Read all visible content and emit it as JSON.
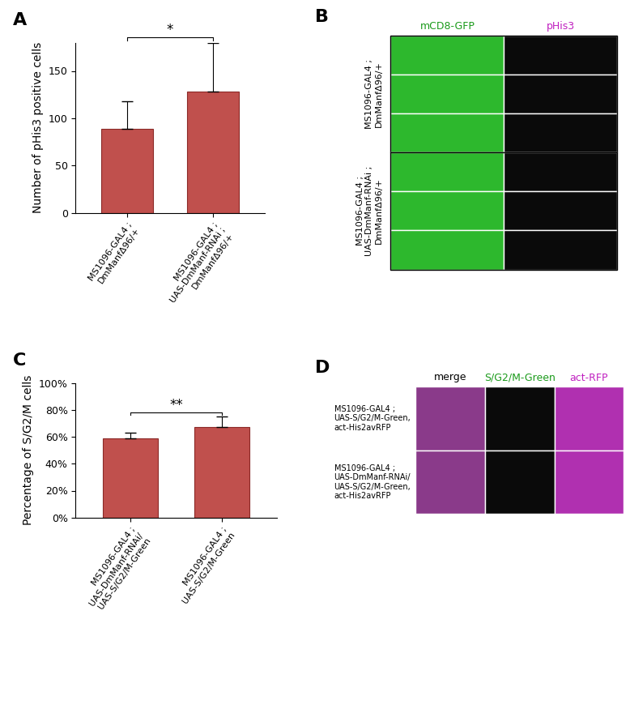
{
  "chart_data": [
    {
      "type": "bar",
      "panel": "A",
      "y_label": "Number of pHis3 positive cells",
      "categories": [
        "MS1096-GAL4 ;\nDmManfΔ96/+",
        "MS1096-GAL4 ;\nUAS-DmManf-RNAi ;\nDmManfΔ96/+"
      ],
      "values": [
        89,
        128
      ],
      "errors": [
        29,
        52
      ],
      "color": "#c0504d",
      "ylim": [
        0,
        180
      ],
      "yticks": [
        0,
        50,
        100,
        150
      ],
      "annotations": [
        "*"
      ]
    },
    {
      "type": "bar",
      "panel": "C",
      "y_label": "Percentage of S/G2/M cells",
      "categories": [
        "MS1096-GAL4 ;\nUAS-DmManf-RNAi/\nUAS-S/G2/M-Green",
        "MS1096-GAL4 ;\nUAS-S/G2/M-Green"
      ],
      "values": [
        58.5,
        67.5
      ],
      "errors": [
        4.5,
        7.5
      ],
      "color": "#c0504d",
      "ylim": [
        0,
        100
      ],
      "yticks": [
        {
          "value": 0,
          "label": "0%"
        },
        {
          "value": 20,
          "label": "20%"
        },
        {
          "value": 40,
          "label": "40%"
        },
        {
          "value": 60,
          "label": "60%"
        },
        {
          "value": 80,
          "label": "80%"
        },
        {
          "value": 100,
          "label": "100%"
        }
      ],
      "annotations": [
        "**"
      ]
    }
  ],
  "image_panels": [
    {
      "panel": "B",
      "columns": [
        "mCD8-GFP",
        "pHis3"
      ],
      "rows": [
        "MS1096-GAL4 ;\nDmManfΔ96/+",
        "MS1096-GAL4 ;\nUAS-DmManf-RNAi ;\nDmManfΔ96/+"
      ]
    },
    {
      "panel": "D",
      "columns": [
        "merge",
        "S/G2/M-Green",
        "act-RFP"
      ],
      "rows": [
        "MS1096-GAL4 ;\nUAS-S/G2/M-Green,\nact-His2avRFP",
        "MS1096-GAL4 ;\nUAS-DmManf-RNAi/\nUAS-S/G2/M-Green,\nact-His2avRFP"
      ]
    }
  ]
}
